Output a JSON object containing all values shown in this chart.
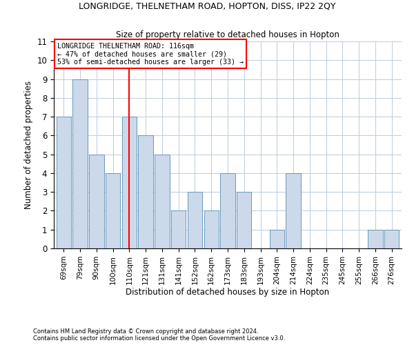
{
  "title1": "LONGRIDGE, THELNETHAM ROAD, HOPTON, DISS, IP22 2QY",
  "title2": "Size of property relative to detached houses in Hopton",
  "xlabel": "Distribution of detached houses by size in Hopton",
  "ylabel": "Number of detached properties",
  "footnote1": "Contains HM Land Registry data © Crown copyright and database right 2024.",
  "footnote2": "Contains public sector information licensed under the Open Government Licence v3.0.",
  "categories": [
    "69sqm",
    "79sqm",
    "90sqm",
    "100sqm",
    "110sqm",
    "121sqm",
    "131sqm",
    "141sqm",
    "152sqm",
    "162sqm",
    "173sqm",
    "183sqm",
    "193sqm",
    "204sqm",
    "214sqm",
    "224sqm",
    "235sqm",
    "245sqm",
    "255sqm",
    "266sqm",
    "276sqm"
  ],
  "values": [
    7,
    9,
    5,
    4,
    7,
    6,
    5,
    2,
    3,
    2,
    4,
    3,
    0,
    1,
    4,
    0,
    0,
    0,
    0,
    1,
    1
  ],
  "bar_color": "#ccd9ea",
  "bar_edge_color": "#6699bb",
  "vline_index": 4,
  "vline_label": "LONGRIDGE THELNETHAM ROAD: 116sqm",
  "annotation_line1": "← 47% of detached houses are smaller (29)",
  "annotation_line2": "53% of semi-detached houses are larger (33) →",
  "ylim": [
    0,
    11
  ],
  "yticks": [
    0,
    1,
    2,
    3,
    4,
    5,
    6,
    7,
    8,
    9,
    10,
    11
  ],
  "background_color": "#ffffff",
  "grid_color": "#bbccdd"
}
